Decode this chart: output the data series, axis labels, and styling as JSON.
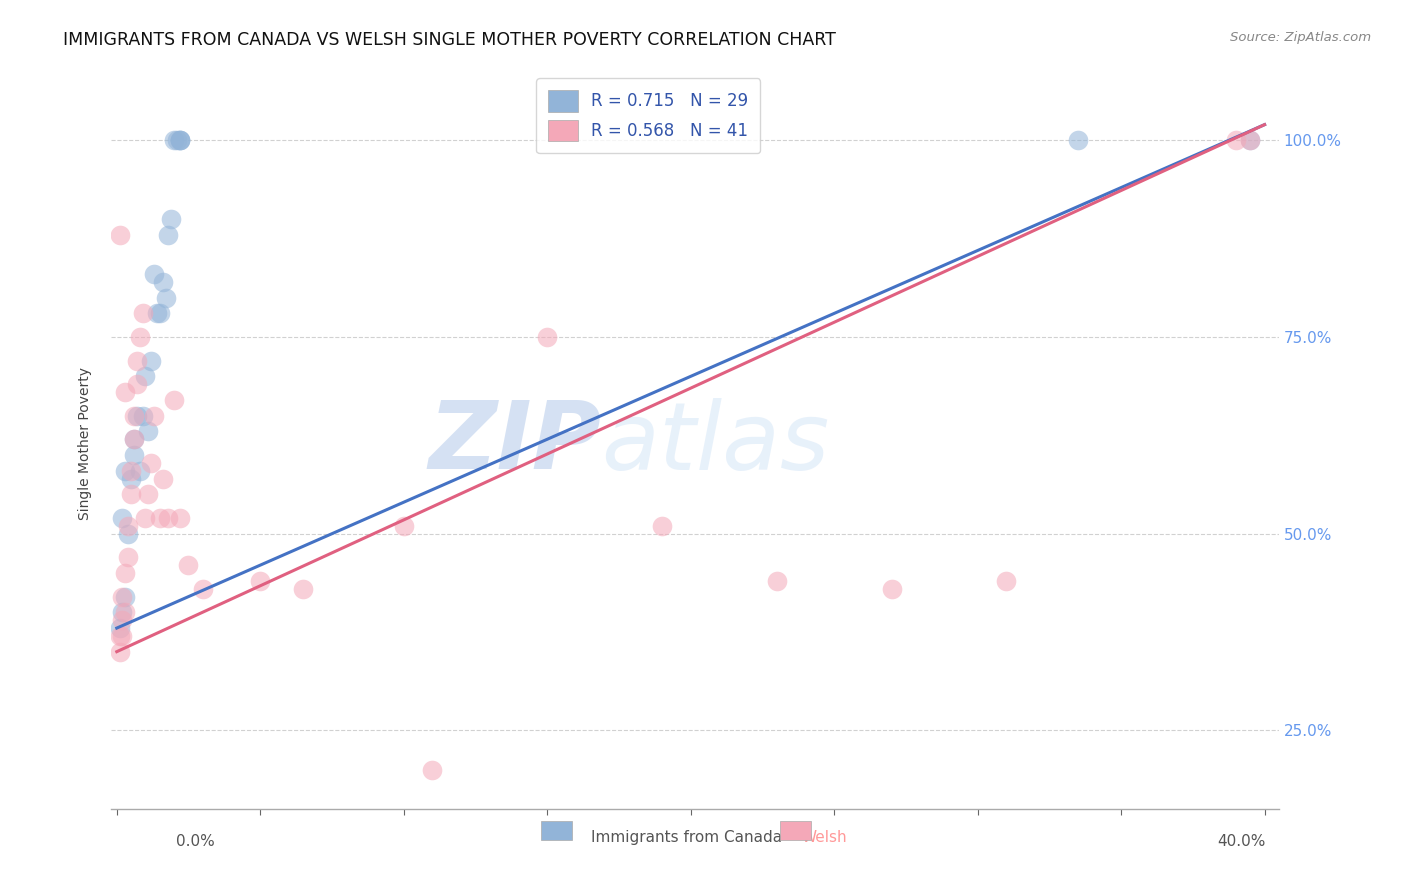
{
  "title": "IMMIGRANTS FROM CANADA VS WELSH SINGLE MOTHER POVERTY CORRELATION CHART",
  "source": "Source: ZipAtlas.com",
  "ylabel": "Single Mother Poverty",
  "x_min": 0.0,
  "x_max": 0.4,
  "y_min": 0.15,
  "y_max": 1.08,
  "legend_blue_r": "R = 0.715",
  "legend_blue_n": "N = 29",
  "legend_pink_r": "R = 0.568",
  "legend_pink_n": "N = 41",
  "blue_color": "#92B4D8",
  "pink_color": "#F4A8B8",
  "blue_line_color": "#4472C4",
  "pink_line_color": "#E06080",
  "blue_scatter_x": [
    0.001,
    0.002,
    0.002,
    0.003,
    0.003,
    0.004,
    0.005,
    0.006,
    0.006,
    0.007,
    0.008,
    0.009,
    0.01,
    0.011,
    0.012,
    0.013,
    0.014,
    0.015,
    0.016,
    0.017,
    0.018,
    0.019,
    0.02,
    0.021,
    0.022,
    0.022,
    0.022,
    0.335,
    0.395
  ],
  "blue_scatter_y": [
    0.38,
    0.4,
    0.52,
    0.42,
    0.58,
    0.5,
    0.57,
    0.62,
    0.6,
    0.65,
    0.58,
    0.65,
    0.7,
    0.63,
    0.72,
    0.83,
    0.78,
    0.78,
    0.82,
    0.8,
    0.88,
    0.9,
    1.0,
    1.0,
    1.0,
    1.0,
    1.0,
    1.0,
    1.0
  ],
  "pink_scatter_x": [
    0.001,
    0.001,
    0.001,
    0.002,
    0.002,
    0.002,
    0.003,
    0.003,
    0.003,
    0.004,
    0.004,
    0.005,
    0.005,
    0.006,
    0.006,
    0.007,
    0.007,
    0.008,
    0.009,
    0.01,
    0.011,
    0.012,
    0.013,
    0.015,
    0.016,
    0.018,
    0.02,
    0.022,
    0.025,
    0.03,
    0.05,
    0.065,
    0.1,
    0.11,
    0.15,
    0.19,
    0.23,
    0.27,
    0.31,
    0.39,
    0.395
  ],
  "pink_scatter_y": [
    0.35,
    0.37,
    0.88,
    0.37,
    0.39,
    0.42,
    0.4,
    0.45,
    0.68,
    0.47,
    0.51,
    0.55,
    0.58,
    0.62,
    0.65,
    0.69,
    0.72,
    0.75,
    0.78,
    0.52,
    0.55,
    0.59,
    0.65,
    0.52,
    0.57,
    0.52,
    0.67,
    0.52,
    0.46,
    0.43,
    0.44,
    0.43,
    0.51,
    0.2,
    0.75,
    0.51,
    0.44,
    0.43,
    0.44,
    1.0,
    1.0
  ],
  "blue_line_x0": 0.0,
  "blue_line_x1": 0.4,
  "blue_line_y0": 0.38,
  "blue_line_y1": 1.02,
  "pink_line_x0": 0.0,
  "pink_line_x1": 0.4,
  "pink_line_y0": 0.35,
  "pink_line_y1": 1.02,
  "background_color": "#FFFFFF",
  "grid_color": "#CCCCCC",
  "watermark_text": "ZIP",
  "watermark_text2": "atlas",
  "title_fontsize": 12.5,
  "axis_label_fontsize": 10,
  "tick_fontsize": 10,
  "legend_fontsize": 12,
  "right_tick_color": "#6699EE"
}
